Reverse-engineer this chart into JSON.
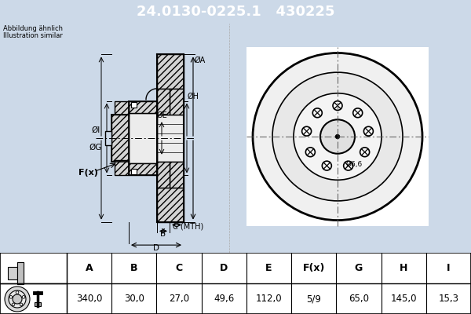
{
  "part_number": "24.0130-0225.1",
  "ref_number": "430225",
  "note_line1": "Abbildung ähnlich",
  "note_line2": "Illustration similar",
  "header_bg": "#1a5276",
  "header_text_color": "#ffffff",
  "body_bg": "#ccd9e8",
  "table_bg": "#ffffff",
  "line_color": "#000000",
  "table_cols": [
    "A",
    "B",
    "C",
    "D",
    "E",
    "F(x)",
    "G",
    "H",
    "I"
  ],
  "table_vals": [
    "340,0",
    "30,0",
    "27,0",
    "49,6",
    "112,0",
    "5/9",
    "65,0",
    "145,0",
    "15,3"
  ],
  "n_bolts": 9,
  "front_bg": "#ffffff"
}
